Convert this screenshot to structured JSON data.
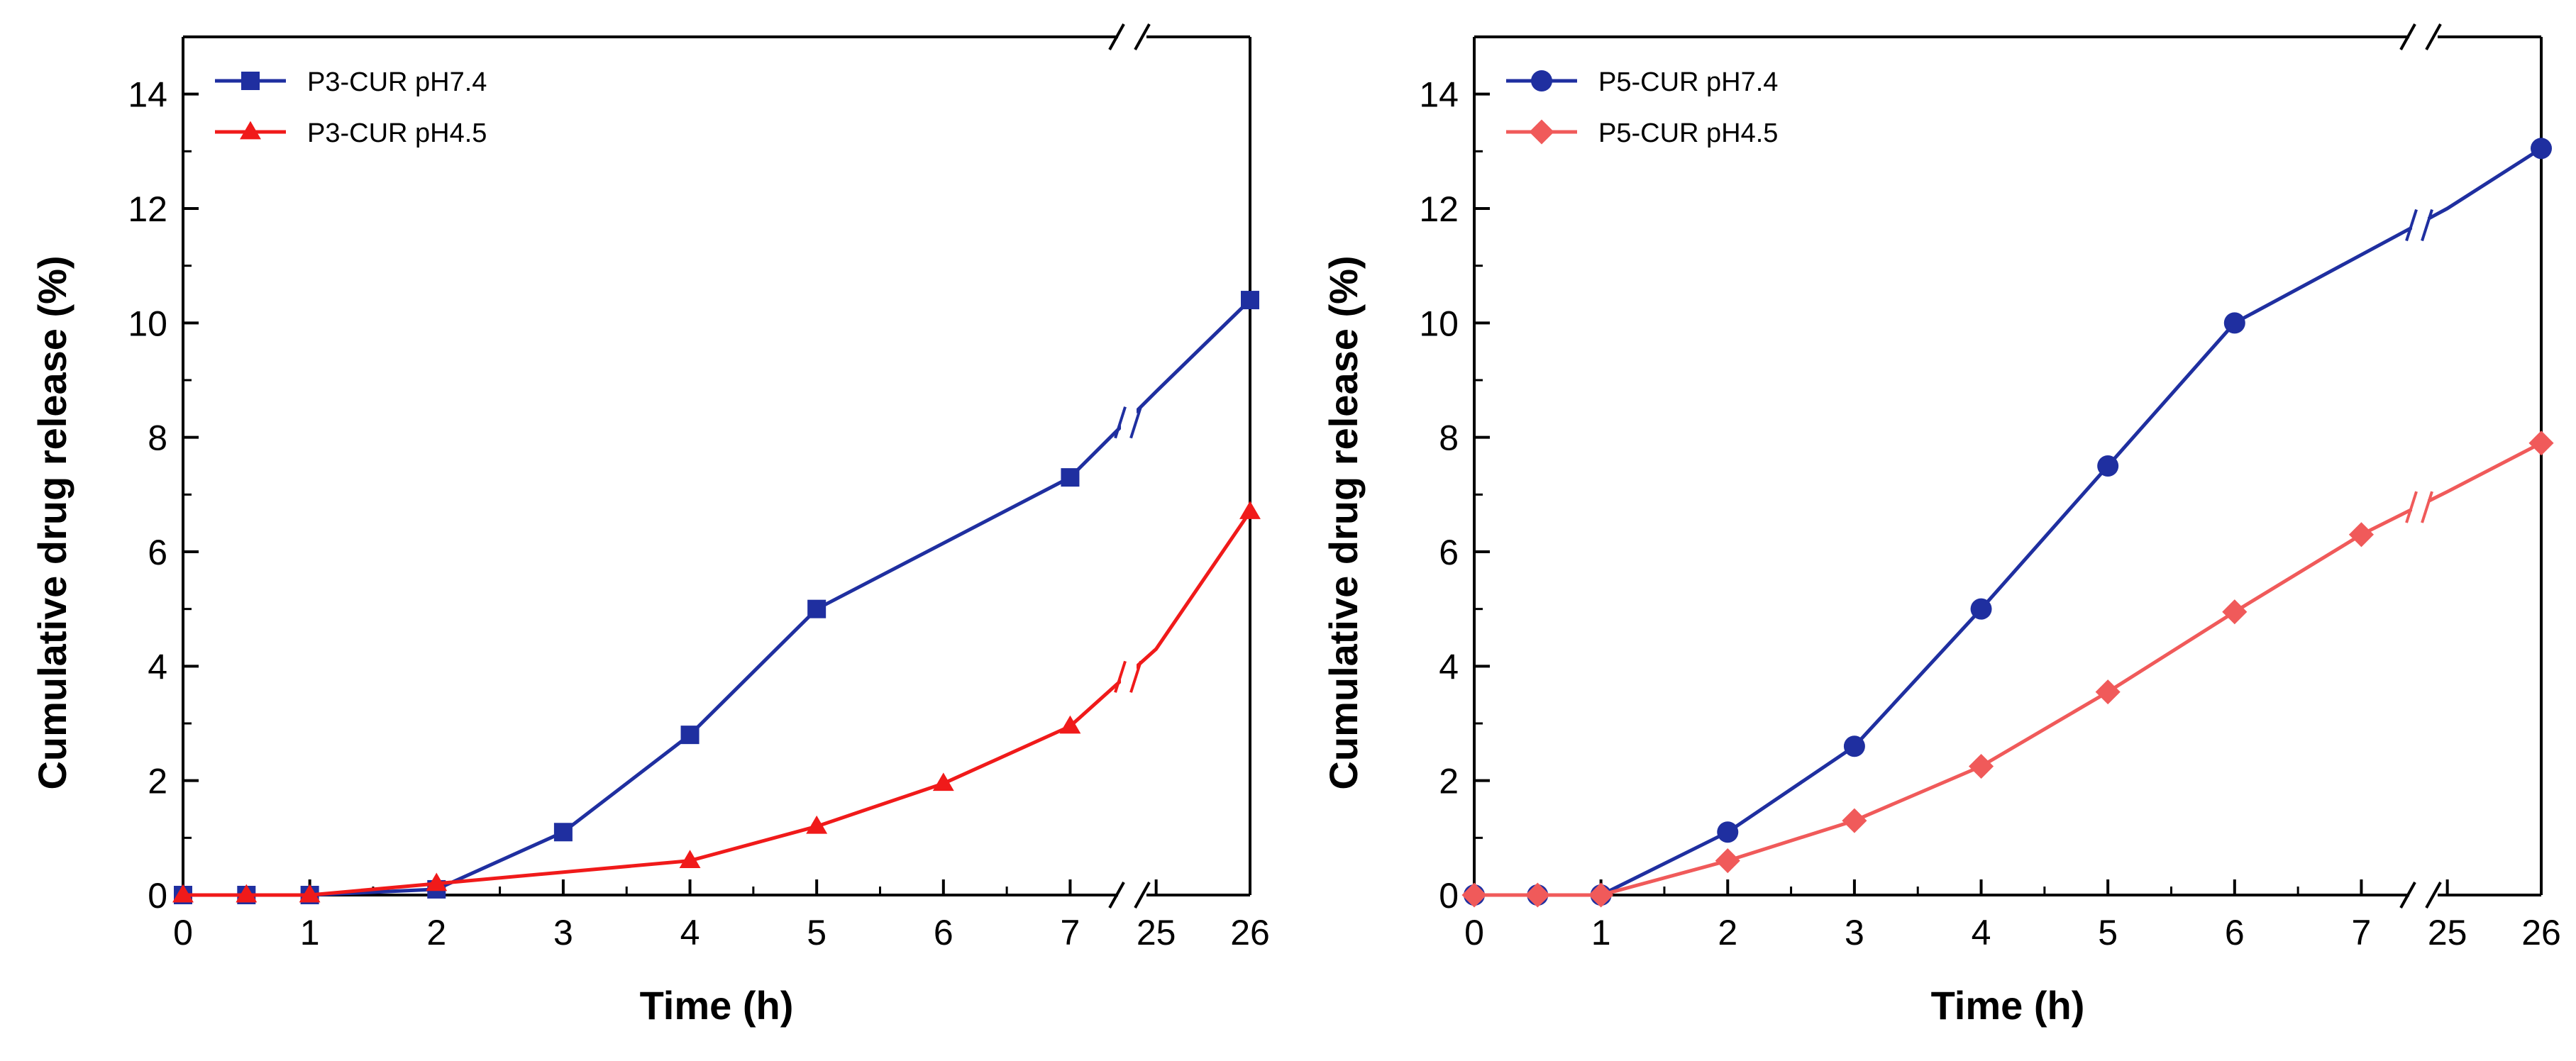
{
  "chart_data": [
    {
      "type": "line",
      "title": "",
      "xlabel": "Time (h)",
      "ylabel": "Cumulative drug release (%)",
      "x_ticks": [
        "0",
        "1",
        "2",
        "3",
        "4",
        "5",
        "6",
        "7",
        "25",
        "26"
      ],
      "x_break": "between 7 and 25",
      "ylim": [
        0,
        15
      ],
      "y_ticks": [
        "0",
        "2",
        "4",
        "6",
        "8",
        "10",
        "12",
        "14"
      ],
      "grid": false,
      "legend_position": "top-left",
      "series": [
        {
          "name": "P3-CUR pH7.4",
          "color": "#1f2fa0",
          "marker": "square",
          "x": [
            0,
            0.5,
            1,
            2,
            3,
            4,
            5,
            7,
            25,
            26
          ],
          "y": [
            0,
            0,
            0,
            0.1,
            1.1,
            2.8,
            5.0,
            7.3,
            8.8,
            10.4
          ]
        },
        {
          "name": "P3-CUR pH4.5",
          "color": "#f01a1a",
          "marker": "triangle",
          "x": [
            0,
            0.5,
            1,
            2,
            4,
            5,
            6,
            7,
            25,
            26
          ],
          "y": [
            0,
            0,
            0,
            0.2,
            0.6,
            1.2,
            1.95,
            2.95,
            4.3,
            6.7
          ]
        }
      ]
    },
    {
      "type": "line",
      "title": "",
      "xlabel": "Time (h)",
      "ylabel": "Cumulative drug release (%)",
      "x_ticks": [
        "0",
        "1",
        "2",
        "3",
        "4",
        "5",
        "6",
        "7",
        "25",
        "26"
      ],
      "x_break": "between 7 and 25",
      "ylim": [
        0,
        15
      ],
      "y_ticks": [
        "0",
        "2",
        "4",
        "6",
        "8",
        "10",
        "12",
        "14"
      ],
      "grid": false,
      "legend_position": "top-left",
      "series": [
        {
          "name": "P5-CUR pH7.4",
          "color": "#1f2fa0",
          "marker": "circle",
          "x": [
            0,
            0.5,
            1,
            2,
            3,
            4,
            5,
            6,
            25,
            26
          ],
          "y": [
            0,
            0,
            0,
            1.1,
            2.6,
            5.0,
            7.5,
            10.0,
            12.0,
            13.05
          ]
        },
        {
          "name": "P5-CUR pH4.5",
          "color": "#f05a5a",
          "marker": "diamond",
          "x": [
            0,
            0.5,
            1,
            2,
            3,
            4,
            5,
            6,
            7,
            25,
            26
          ],
          "y": [
            0,
            0,
            0,
            0.6,
            1.3,
            2.25,
            3.55,
            4.95,
            6.3,
            7.05,
            7.9
          ]
        }
      ]
    }
  ]
}
